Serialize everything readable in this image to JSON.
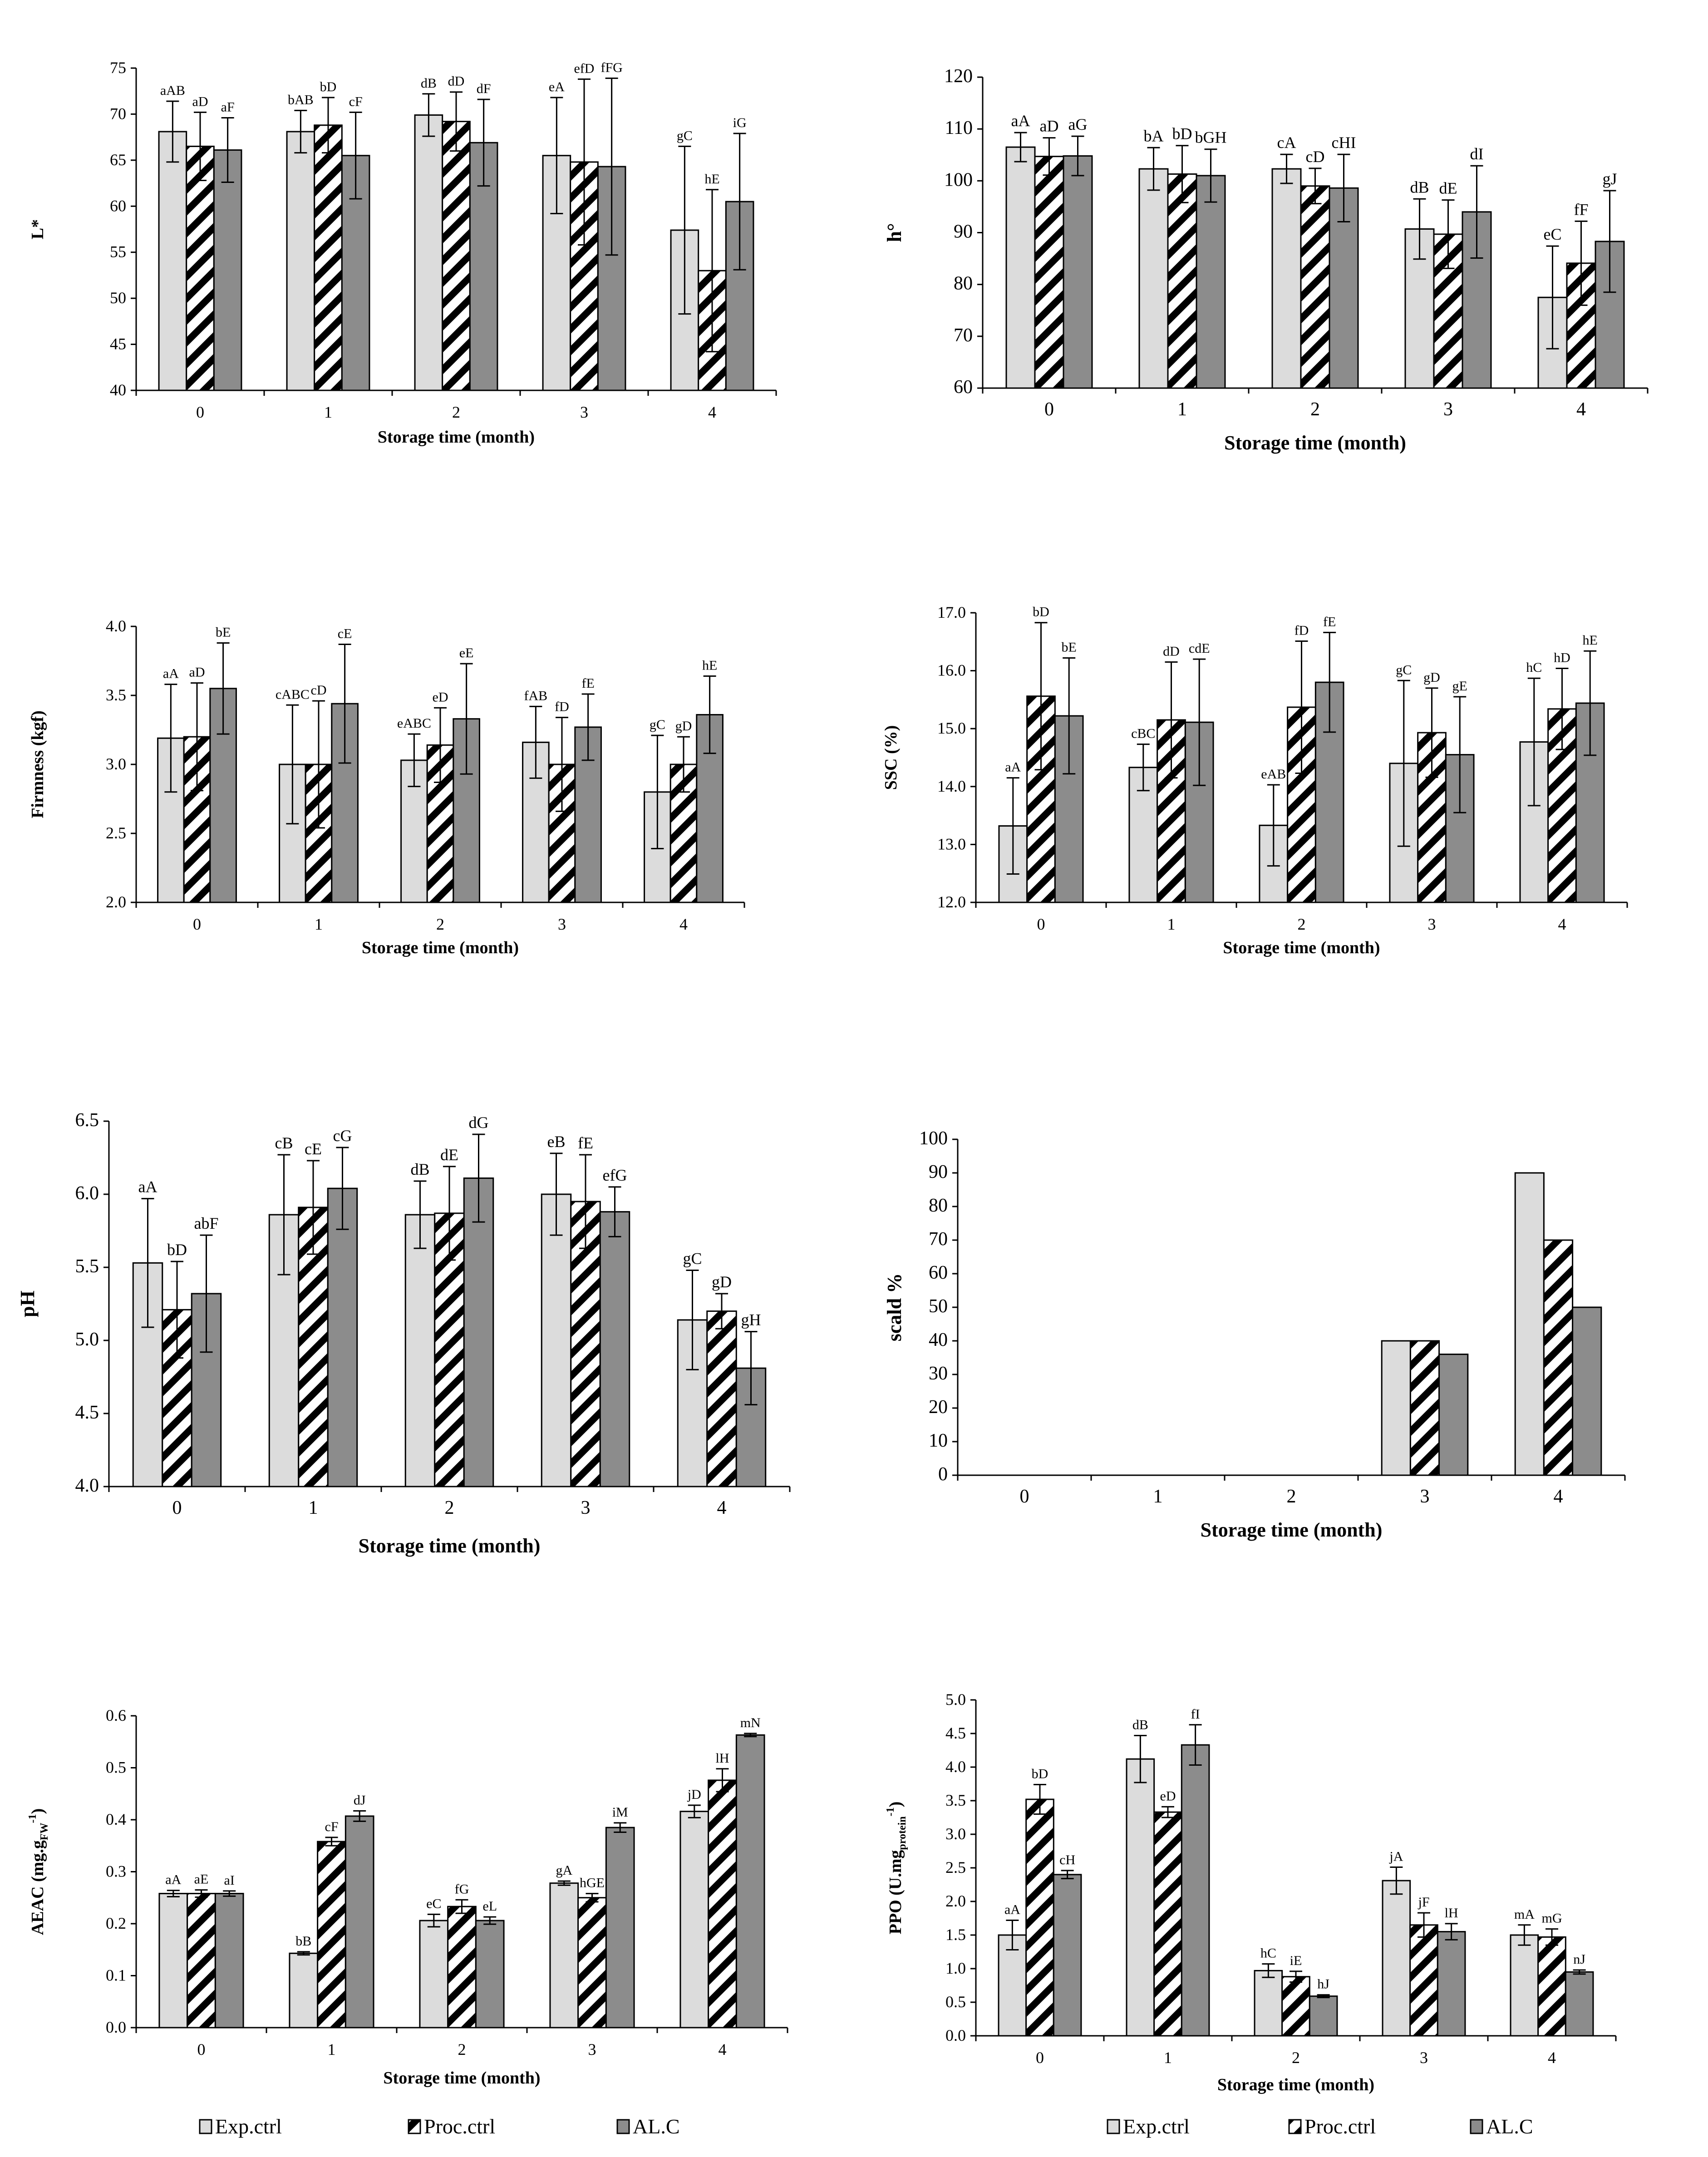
{
  "chart_data": [
    {
      "id": "L",
      "type": "bar",
      "categories": [
        "0",
        "1",
        "2",
        "3",
        "4"
      ],
      "xlabel": "Storage time (month)",
      "ylabel": "L*",
      "ylim": [
        40,
        75
      ],
      "yticks": [
        40,
        45,
        50,
        55,
        60,
        65,
        70,
        75
      ],
      "series": [
        {
          "name": "Exp.ctrl",
          "values": [
            68.1,
            68.1,
            69.9,
            65.5,
            57.4
          ],
          "errors": [
            3.3,
            2.3,
            2.3,
            6.3,
            9.1
          ],
          "labels": [
            "aAB",
            "bAB",
            "dB",
            "eA",
            "gC"
          ]
        },
        {
          "name": "Proc.ctrl",
          "values": [
            66.5,
            68.8,
            69.2,
            64.8,
            53.0
          ],
          "errors": [
            3.7,
            3.0,
            3.2,
            9.0,
            8.8
          ],
          "labels": [
            "aD",
            "bD",
            "dD",
            "efD",
            "hE"
          ]
        },
        {
          "name": "AL.C",
          "values": [
            66.1,
            65.5,
            66.9,
            64.3,
            60.5
          ],
          "errors": [
            3.5,
            4.7,
            4.7,
            9.6,
            7.4
          ],
          "labels": [
            "aF",
            "cF",
            "dF",
            "fFG",
            "iG"
          ]
        }
      ]
    },
    {
      "id": "h",
      "type": "bar",
      "categories": [
        "0",
        "1",
        "2",
        "3",
        "4"
      ],
      "xlabel": "Storage time (month)",
      "ylabel": "h°",
      "ylim": [
        60,
        120
      ],
      "yticks": [
        60,
        70,
        80,
        90,
        100,
        110,
        120
      ],
      "series": [
        {
          "name": "Exp.ctrl",
          "values": [
            106.5,
            102.3,
            102.3,
            90.7,
            77.5
          ],
          "errors": [
            2.8,
            4.1,
            2.8,
            5.8,
            9.9
          ],
          "labels": [
            "aA",
            "bA",
            "cA",
            "dB",
            "eC"
          ]
        },
        {
          "name": "Proc.ctrl",
          "values": [
            104.7,
            101.3,
            99.0,
            89.7,
            84.1
          ],
          "errors": [
            3.6,
            5.5,
            3.4,
            6.6,
            8.1
          ],
          "labels": [
            "aD",
            "bD",
            "cD",
            "dE",
            "fF"
          ]
        },
        {
          "name": "AL.C",
          "values": [
            104.8,
            101.0,
            98.6,
            94.0,
            88.3
          ],
          "errors": [
            3.8,
            5.1,
            6.5,
            8.9,
            9.8
          ],
          "labels": [
            "aG",
            "bGH",
            "cHI",
            "dI",
            "gJ"
          ]
        }
      ]
    },
    {
      "id": "Firmness",
      "type": "bar",
      "categories": [
        "0",
        "1",
        "2",
        "3",
        "4"
      ],
      "xlabel": "Storage time (month)",
      "ylabel": "Firmness (kgf)",
      "ylim": [
        2.0,
        4.0
      ],
      "yticks": [
        "2.0",
        "2.5",
        "3.0",
        "3.5",
        "4.0"
      ],
      "series": [
        {
          "name": "Exp.ctrl",
          "values": [
            3.19,
            3.0,
            3.03,
            3.16,
            2.8
          ],
          "errors": [
            0.39,
            0.43,
            0.19,
            0.26,
            0.41
          ],
          "labels": [
            "aA",
            "cABC",
            "eABC",
            "fAB",
            "gC"
          ]
        },
        {
          "name": "Proc.ctrl",
          "values": [
            3.2,
            3.0,
            3.14,
            3.0,
            3.0
          ],
          "errors": [
            0.39,
            0.46,
            0.27,
            0.34,
            0.2
          ],
          "labels": [
            "aD",
            "cD",
            "eD",
            "fD",
            "gD"
          ]
        },
        {
          "name": "AL.C",
          "values": [
            3.55,
            3.44,
            3.33,
            3.27,
            3.36
          ],
          "errors": [
            0.33,
            0.43,
            0.4,
            0.24,
            0.28
          ],
          "labels": [
            "bE",
            "cE",
            "eE",
            "fE",
            "hE"
          ]
        }
      ]
    },
    {
      "id": "SSC",
      "type": "bar",
      "categories": [
        "0",
        "1",
        "2",
        "3",
        "4"
      ],
      "xlabel": "Storage time (month)",
      "ylabel": "SSC (%)",
      "ylim": [
        12.0,
        17.0
      ],
      "yticks": [
        "12.0",
        "13.0",
        "14.0",
        "15.0",
        "16.0",
        "17.0"
      ],
      "series": [
        {
          "name": "Exp.ctrl",
          "values": [
            13.32,
            14.33,
            13.33,
            14.4,
            14.77
          ],
          "errors": [
            0.83,
            0.4,
            0.7,
            1.43,
            1.1
          ],
          "labels": [
            "aA",
            "cBC",
            "eAB",
            "gC",
            "hC"
          ]
        },
        {
          "name": "Proc.ctrl",
          "values": [
            15.56,
            15.15,
            15.37,
            14.93,
            15.34
          ],
          "errors": [
            1.27,
            1.0,
            1.14,
            0.77,
            0.7
          ],
          "labels": [
            "bD",
            "dD",
            "fD",
            "gD",
            "hD"
          ]
        },
        {
          "name": "AL.C",
          "values": [
            15.22,
            15.11,
            15.8,
            14.55,
            15.44
          ],
          "errors": [
            1.0,
            1.09,
            0.86,
            1.0,
            0.9
          ],
          "labels": [
            "bE",
            "cdE",
            "fE",
            "gE",
            "hE"
          ]
        }
      ]
    },
    {
      "id": "pH",
      "type": "bar",
      "categories": [
        "0",
        "1",
        "2",
        "3",
        "4"
      ],
      "xlabel": "Storage time (month)",
      "ylabel": "pH",
      "ylim": [
        4.0,
        6.5
      ],
      "yticks": [
        "4.0",
        "4.5",
        "5.0",
        "5.5",
        "6.0",
        "6.5"
      ],
      "series": [
        {
          "name": "Exp.ctrl",
          "values": [
            5.53,
            5.86,
            5.86,
            6.0,
            5.14
          ],
          "errors": [
            0.44,
            0.41,
            0.23,
            0.28,
            0.34
          ],
          "labels": [
            "aA",
            "cB",
            "dB",
            "eB",
            "gC"
          ]
        },
        {
          "name": "Proc.ctrl",
          "values": [
            5.21,
            5.91,
            5.87,
            5.95,
            5.2
          ],
          "errors": [
            0.33,
            0.32,
            0.32,
            0.32,
            0.12
          ],
          "labels": [
            "bD",
            "cE",
            "dE",
            "fE",
            "gD"
          ]
        },
        {
          "name": "AL.C",
          "values": [
            5.32,
            6.04,
            6.11,
            5.88,
            4.81
          ],
          "errors": [
            0.4,
            0.28,
            0.3,
            0.17,
            0.25
          ],
          "labels": [
            "abF",
            "cG",
            "dG",
            "efG",
            "gH"
          ]
        }
      ]
    },
    {
      "id": "scald",
      "type": "bar",
      "categories": [
        "0",
        "1",
        "2",
        "3",
        "4"
      ],
      "xlabel": "Storage time (month)",
      "ylabel": "scald %",
      "ylim": [
        0,
        100
      ],
      "yticks": [
        0,
        10,
        20,
        30,
        40,
        50,
        60,
        70,
        80,
        90,
        100
      ],
      "series": [
        {
          "name": "Exp.ctrl",
          "values": [
            0,
            0,
            0,
            40,
            90
          ]
        },
        {
          "name": "Proc.ctrl",
          "values": [
            0,
            0,
            0,
            40,
            70
          ]
        },
        {
          "name": "AL.C",
          "values": [
            0,
            0,
            0,
            36,
            50
          ]
        }
      ]
    },
    {
      "id": "AEAC",
      "type": "bar",
      "categories": [
        "0",
        "1",
        "2",
        "3",
        "4"
      ],
      "xlabel": "Storage time (month)",
      "ylabel": "AEAC (mg.g",
      "ylabel_sub": "FW",
      "ylabel_sup": "-1",
      "ylabel_end": ")",
      "ylim": [
        0.0,
        0.6
      ],
      "yticks": [
        "0.0",
        "0.1",
        "0.2",
        "0.3",
        "0.4",
        "0.5",
        "0.6"
      ],
      "series": [
        {
          "name": "Exp.ctrl",
          "values": [
            0.258,
            0.143,
            0.206,
            0.278,
            0.416
          ],
          "errors": [
            0.006,
            0.003,
            0.012,
            0.004,
            0.012
          ],
          "labels": [
            "aA",
            "bB",
            "eC",
            "gA",
            "jD"
          ]
        },
        {
          "name": "Proc.ctrl",
          "values": [
            0.258,
            0.358,
            0.233,
            0.25,
            0.476
          ],
          "errors": [
            0.007,
            0.008,
            0.013,
            0.008,
            0.022
          ],
          "labels": [
            "aE",
            "cF",
            "fG",
            "hGE",
            "lH"
          ]
        },
        {
          "name": "AL.C",
          "values": [
            0.258,
            0.407,
            0.206,
            0.385,
            0.563
          ],
          "errors": [
            0.005,
            0.01,
            0.007,
            0.009,
            0.003
          ],
          "labels": [
            "aI",
            "dJ",
            "eL",
            "iM",
            "mN"
          ]
        }
      ]
    },
    {
      "id": "PPO",
      "type": "bar",
      "categories": [
        "0",
        "1",
        "2",
        "3",
        "4"
      ],
      "xlabel": "Storage time (month)",
      "ylabel": "PPO (U.mg",
      "ylabel_sub": "protein",
      "ylabel_sup": "-1",
      "ylabel_end": ")",
      "ylim": [
        0.0,
        5.0
      ],
      "yticks": [
        "0.0",
        "0.5",
        "1.0",
        "1.5",
        "2.0",
        "2.5",
        "3.0",
        "3.5",
        "4.0",
        "4.5",
        "5.0"
      ],
      "series": [
        {
          "name": "Exp.ctrl",
          "values": [
            1.5,
            4.12,
            0.97,
            2.31,
            1.5
          ],
          "errors": [
            0.22,
            0.35,
            0.1,
            0.2,
            0.15
          ],
          "labels": [
            "aA",
            "dB",
            "hC",
            "jA",
            "mA"
          ]
        },
        {
          "name": "Proc.ctrl",
          "values": [
            3.52,
            3.33,
            0.88,
            1.65,
            1.47
          ],
          "errors": [
            0.22,
            0.08,
            0.08,
            0.18,
            0.12
          ],
          "labels": [
            "bD",
            "eD",
            "iE",
            "jF",
            "mG"
          ]
        },
        {
          "name": "AL.C",
          "values": [
            2.4,
            4.33,
            0.59,
            1.55,
            0.95
          ],
          "errors": [
            0.06,
            0.3,
            0.02,
            0.12,
            0.03
          ],
          "labels": [
            "cH",
            "fI",
            "hJ",
            "lH",
            "nJ"
          ]
        }
      ]
    }
  ],
  "legend": [
    "Exp.ctrl",
    "Proc.ctrl",
    "AL.C"
  ],
  "style": {
    "exp_fill": "#dcdcdc",
    "al_fill": "#8c8c8c",
    "stroke": "#000000",
    "hatch": "#000000"
  }
}
